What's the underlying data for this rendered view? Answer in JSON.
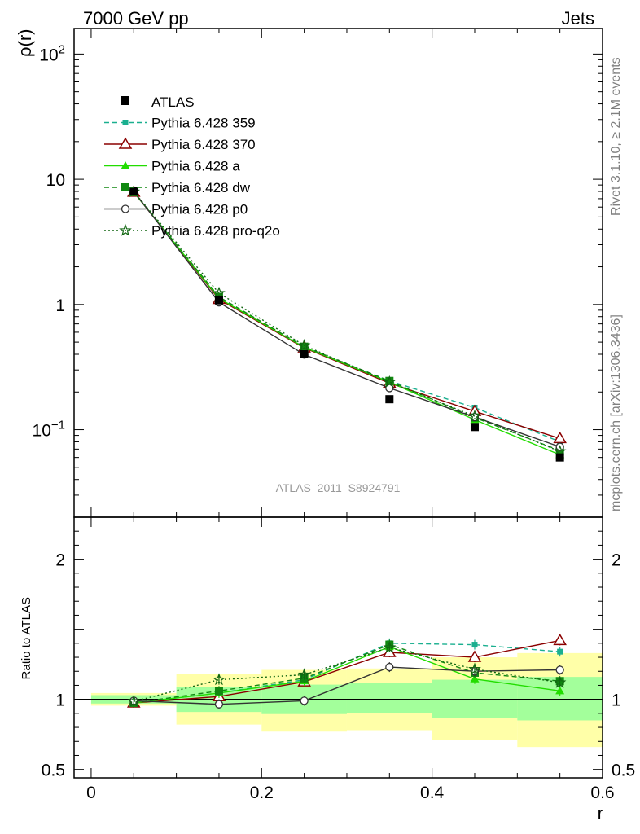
{
  "header": {
    "left": "7000 GeV pp",
    "right": "Jets"
  },
  "side_text": {
    "top": "Rivet 3.1.10, ≥ 2.1M events",
    "bottom": "mcplots.cern.ch [arXiv:1306.3436]"
  },
  "chart_data": [
    {
      "type": "line",
      "panel": "main",
      "ylabel": "ρ(r)",
      "yscale": "log",
      "ylim": [
        0.02,
        160
      ],
      "xlim": [
        -0.02,
        0.6
      ],
      "annotation": "ATLAS_2011_S8924791",
      "legend_position": "top-left",
      "y_ticks": [
        {
          "value": 0.1,
          "base": "10",
          "exp": "−1"
        },
        {
          "value": 1,
          "label": "1"
        },
        {
          "value": 10,
          "label": "10"
        },
        {
          "value": 100,
          "base": "10",
          "exp": "2"
        }
      ],
      "x": [
        0.05,
        0.15,
        0.25,
        0.35,
        0.45,
        0.55
      ],
      "data": {
        "name": "ATLAS",
        "values": [
          8.1,
          1.08,
          0.4,
          0.175,
          0.105,
          0.06
        ],
        "errors": [
          0.3,
          0.02,
          0.01,
          0.005,
          0.004,
          0.003
        ]
      },
      "series": [
        {
          "name": "Pythia 6.428 359",
          "color": "#1aaf8f",
          "dash": "6,4",
          "marker": "square-small",
          "values": [
            7.9,
            1.13,
            0.455,
            0.245,
            0.15,
            0.08
          ]
        },
        {
          "name": "Pythia 6.428 370",
          "color": "#8b0000",
          "dash": "",
          "marker": "triangle-open",
          "values": [
            7.9,
            1.1,
            0.45,
            0.235,
            0.14,
            0.085
          ]
        },
        {
          "name": "Pythia 6.428 a",
          "color": "#22dd00",
          "dash": "",
          "marker": "triangle-filled",
          "values": [
            7.9,
            1.12,
            0.455,
            0.24,
            0.12,
            0.063
          ]
        },
        {
          "name": "Pythia 6.428 dw",
          "color": "#118811",
          "dash": "6,4",
          "marker": "square-filled",
          "values": [
            7.9,
            1.15,
            0.46,
            0.245,
            0.125,
            0.068
          ]
        },
        {
          "name": "Pythia 6.428 p0",
          "color": "#333333",
          "dash": "",
          "marker": "circle-open",
          "values": [
            8.0,
            1.04,
            0.398,
            0.215,
            0.126,
            0.073
          ]
        },
        {
          "name": "Pythia 6.428 pro-q2o",
          "color": "#116611",
          "dash": "2,3",
          "marker": "star-open",
          "values": [
            7.95,
            1.23,
            0.47,
            0.24,
            0.128,
            0.067
          ]
        }
      ]
    },
    {
      "type": "line",
      "panel": "ratio",
      "ylabel": "Ratio to ATLAS",
      "xlabel": "r",
      "ylim": [
        0.44,
        2.3
      ],
      "xlim": [
        -0.02,
        0.6
      ],
      "x_ticks": [
        {
          "value": 0,
          "label": "0"
        },
        {
          "value": 0.2,
          "label": "0.2"
        },
        {
          "value": 0.4,
          "label": "0.4"
        },
        {
          "value": 0.6,
          "label": "0.6"
        }
      ],
      "y_ticks": [
        {
          "value": 0.5,
          "label": "0.5"
        },
        {
          "value": 1,
          "label": "1"
        },
        {
          "value": 2,
          "label": "2"
        }
      ],
      "bins": [
        {
          "lo": 0.0,
          "hi": 0.1,
          "band_inner": [
            0.97,
            1.03
          ],
          "band_outer": [
            0.955,
            1.045
          ]
        },
        {
          "lo": 0.1,
          "hi": 0.2,
          "band_inner": [
            0.91,
            1.09
          ],
          "band_outer": [
            0.82,
            1.18
          ]
        },
        {
          "lo": 0.2,
          "hi": 0.3,
          "band_inner": [
            0.895,
            1.105
          ],
          "band_outer": [
            0.77,
            1.21
          ]
        },
        {
          "lo": 0.3,
          "hi": 0.4,
          "band_inner": [
            0.9,
            1.115
          ],
          "band_outer": [
            0.78,
            1.22
          ]
        },
        {
          "lo": 0.4,
          "hi": 0.5,
          "band_inner": [
            0.87,
            1.14
          ],
          "band_outer": [
            0.71,
            1.3
          ]
        },
        {
          "lo": 0.5,
          "hi": 0.6,
          "band_inner": [
            0.85,
            1.16
          ],
          "band_outer": [
            0.66,
            1.33
          ]
        }
      ],
      "series": [
        {
          "name": "Pythia 6.428 359",
          "values": [
            0.975,
            1.045,
            1.14,
            1.4,
            1.39,
            1.34
          ]
        },
        {
          "name": "Pythia 6.428 370",
          "values": [
            0.975,
            1.02,
            1.125,
            1.335,
            1.3,
            1.42
          ]
        },
        {
          "name": "Pythia 6.428 a",
          "values": [
            0.975,
            1.045,
            1.13,
            1.375,
            1.145,
            1.06
          ]
        },
        {
          "name": "Pythia 6.428 dw",
          "values": [
            0.975,
            1.06,
            1.15,
            1.39,
            1.19,
            1.13
          ]
        },
        {
          "name": "Pythia 6.428 p0",
          "values": [
            0.99,
            0.965,
            0.99,
            1.23,
            1.2,
            1.21
          ]
        },
        {
          "name": "Pythia 6.428 pro-q2o",
          "values": [
            0.985,
            1.14,
            1.175,
            1.37,
            1.215,
            1.12
          ]
        }
      ]
    }
  ]
}
